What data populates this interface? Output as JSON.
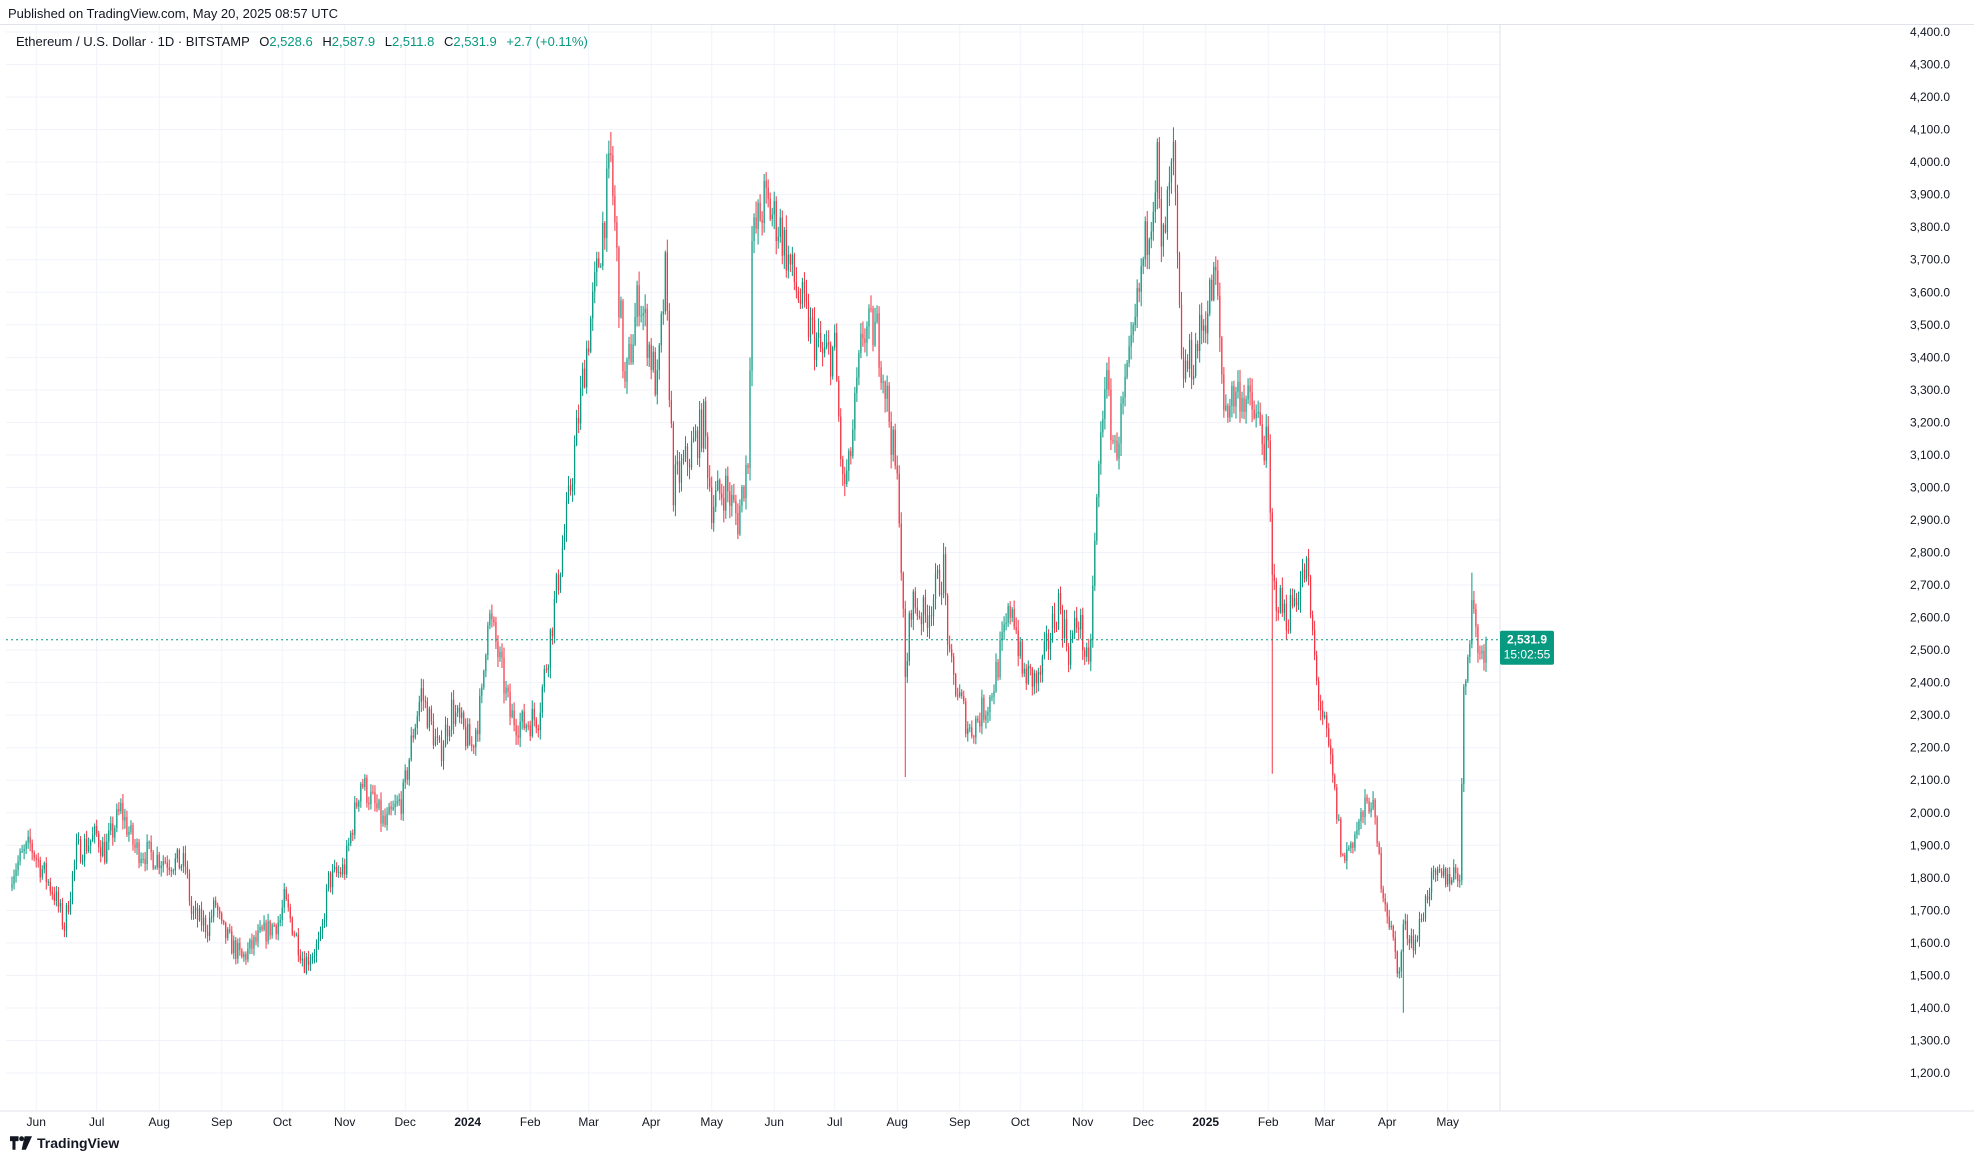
{
  "published": "Published on TradingView.com, May 20, 2025 08:57 UTC",
  "legend": {
    "title": "Ethereum / U.S. Dollar · 1D · BITSTAMP",
    "open_label": "O",
    "open": "2,528.6",
    "high_label": "H",
    "high": "2,587.9",
    "low_label": "L",
    "low": "2,511.8",
    "close_label": "C",
    "close": "2,531.9",
    "change": "+2.7 (+0.11%)"
  },
  "last_price": {
    "value": "2,531.9",
    "countdown": "15:02:55"
  },
  "footer": {
    "brand": "TradingView"
  },
  "colors": {
    "up": "#089981",
    "down": "#f23645",
    "neutral": "#5d606b",
    "grid": "#f0f3fa",
    "last_line": "#089981"
  },
  "chart_data": {
    "type": "candlestick",
    "symbol": "Ethereum / U.S. Dollar",
    "interval": "1D",
    "exchange": "BITSTAMP",
    "ylim": [
      1100,
      4450
    ],
    "yticks": [
      "1,200.0",
      "1,300.0",
      "1,400.0",
      "1,500.0",
      "1,600.0",
      "1,700.0",
      "1,800.0",
      "1,900.0",
      "2,000.0",
      "2,100.0",
      "2,200.0",
      "2,300.0",
      "2,400.0",
      "2,500.0",
      "2,600.0",
      "2,700.0",
      "2,800.0",
      "2,900.0",
      "3,000.0",
      "3,100.0",
      "3,200.0",
      "3,300.0",
      "3,400.0",
      "3,500.0",
      "3,600.0",
      "3,700.0",
      "3,800.0",
      "3,900.0",
      "4,000.0",
      "4,100.0",
      "4,200.0",
      "4,300.0",
      "4,400.0"
    ],
    "x_labels": [
      {
        "text": "Jun",
        "date": "2023-06-01",
        "bold": false
      },
      {
        "text": "Jul",
        "date": "2023-07-01",
        "bold": false
      },
      {
        "text": "Aug",
        "date": "2023-08-01",
        "bold": false
      },
      {
        "text": "Sep",
        "date": "2023-09-01",
        "bold": false
      },
      {
        "text": "Oct",
        "date": "2023-10-01",
        "bold": false
      },
      {
        "text": "Nov",
        "date": "2023-11-01",
        "bold": false
      },
      {
        "text": "Dec",
        "date": "2023-12-01",
        "bold": false
      },
      {
        "text": "2024",
        "date": "2024-01-01",
        "bold": true
      },
      {
        "text": "Feb",
        "date": "2024-02-01",
        "bold": false
      },
      {
        "text": "Mar",
        "date": "2024-03-01",
        "bold": false
      },
      {
        "text": "Apr",
        "date": "2024-04-01",
        "bold": false
      },
      {
        "text": "May",
        "date": "2024-05-01",
        "bold": false
      },
      {
        "text": "Jun",
        "date": "2024-06-01",
        "bold": false
      },
      {
        "text": "Jul",
        "date": "2024-07-01",
        "bold": false
      },
      {
        "text": "Aug",
        "date": "2024-08-01",
        "bold": false
      },
      {
        "text": "Sep",
        "date": "2024-09-01",
        "bold": false
      },
      {
        "text": "Oct",
        "date": "2024-10-01",
        "bold": false
      },
      {
        "text": "Nov",
        "date": "2024-11-01",
        "bold": false
      },
      {
        "text": "Dec",
        "date": "2024-12-01",
        "bold": false
      },
      {
        "text": "2025",
        "date": "2025-01-01",
        "bold": true
      },
      {
        "text": "Feb",
        "date": "2025-02-01",
        "bold": false
      },
      {
        "text": "Mar",
        "date": "2025-03-01",
        "bold": false
      },
      {
        "text": "Apr",
        "date": "2025-04-01",
        "bold": false
      },
      {
        "text": "May",
        "date": "2025-05-01",
        "bold": false
      }
    ],
    "date_range": [
      "2023-05-20",
      "2025-05-20"
    ],
    "last_close": 2531.9,
    "close_path": [
      {
        "date": "2023-05-20",
        "close": 1820
      },
      {
        "date": "2023-05-29",
        "close": 1900
      },
      {
        "date": "2023-06-10",
        "close": 1750
      },
      {
        "date": "2023-06-15",
        "close": 1650
      },
      {
        "date": "2023-06-21",
        "close": 1880
      },
      {
        "date": "2023-07-01",
        "close": 1930
      },
      {
        "date": "2023-07-05",
        "close": 1880
      },
      {
        "date": "2023-07-13",
        "close": 2010
      },
      {
        "date": "2023-07-20",
        "close": 1890
      },
      {
        "date": "2023-08-01",
        "close": 1860
      },
      {
        "date": "2023-08-14",
        "close": 1840
      },
      {
        "date": "2023-08-17",
        "close": 1690
      },
      {
        "date": "2023-08-25",
        "close": 1650
      },
      {
        "date": "2023-08-29",
        "close": 1720
      },
      {
        "date": "2023-09-01",
        "close": 1640
      },
      {
        "date": "2023-09-11",
        "close": 1550
      },
      {
        "date": "2023-09-20",
        "close": 1620
      },
      {
        "date": "2023-09-30",
        "close": 1670
      },
      {
        "date": "2023-10-02",
        "close": 1730
      },
      {
        "date": "2023-10-12",
        "close": 1540
      },
      {
        "date": "2023-10-20",
        "close": 1600
      },
      {
        "date": "2023-10-24",
        "close": 1790
      },
      {
        "date": "2023-11-01",
        "close": 1830
      },
      {
        "date": "2023-11-09",
        "close": 2100
      },
      {
        "date": "2023-11-21",
        "close": 1960
      },
      {
        "date": "2023-11-30",
        "close": 2050
      },
      {
        "date": "2023-12-05",
        "close": 2250
      },
      {
        "date": "2023-12-09",
        "close": 2370
      },
      {
        "date": "2023-12-18",
        "close": 2180
      },
      {
        "date": "2023-12-24",
        "close": 2320
      },
      {
        "date": "2024-01-03",
        "close": 2200
      },
      {
        "date": "2024-01-08",
        "close": 2350
      },
      {
        "date": "2024-01-11",
        "close": 2620
      },
      {
        "date": "2024-01-15",
        "close": 2520
      },
      {
        "date": "2024-01-22",
        "close": 2300
      },
      {
        "date": "2024-01-28",
        "close": 2270
      },
      {
        "date": "2024-02-05",
        "close": 2300
      },
      {
        "date": "2024-02-10",
        "close": 2500
      },
      {
        "date": "2024-02-20",
        "close": 2950
      },
      {
        "date": "2024-02-28",
        "close": 3380
      },
      {
        "date": "2024-03-05",
        "close": 3650
      },
      {
        "date": "2024-03-12",
        "close": 4000
      },
      {
        "date": "2024-03-19",
        "close": 3300
      },
      {
        "date": "2024-03-26",
        "close": 3600
      },
      {
        "date": "2024-04-04",
        "close": 3300
      },
      {
        "date": "2024-04-08",
        "close": 3650
      },
      {
        "date": "2024-04-12",
        "close": 3000
      },
      {
        "date": "2024-04-20",
        "close": 3100
      },
      {
        "date": "2024-04-27",
        "close": 3200
      },
      {
        "date": "2024-05-01",
        "close": 2950
      },
      {
        "date": "2024-05-08",
        "close": 3000
      },
      {
        "date": "2024-05-14",
        "close": 2900
      },
      {
        "date": "2024-05-19",
        "close": 3100
      },
      {
        "date": "2024-05-21",
        "close": 3750
      },
      {
        "date": "2024-05-27",
        "close": 3880
      },
      {
        "date": "2024-06-04",
        "close": 3800
      },
      {
        "date": "2024-06-10",
        "close": 3650
      },
      {
        "date": "2024-06-18",
        "close": 3500
      },
      {
        "date": "2024-06-25",
        "close": 3400
      },
      {
        "date": "2024-07-01",
        "close": 3420
      },
      {
        "date": "2024-07-05",
        "close": 3000
      },
      {
        "date": "2024-07-08",
        "close": 3050
      },
      {
        "date": "2024-07-15",
        "close": 3480
      },
      {
        "date": "2024-07-22",
        "close": 3480
      },
      {
        "date": "2024-07-27",
        "close": 3270
      },
      {
        "date": "2024-08-02",
        "close": 2950
      },
      {
        "date": "2024-08-05",
        "close": 2400
      },
      {
        "date": "2024-08-08",
        "close": 2650
      },
      {
        "date": "2024-08-15",
        "close": 2600
      },
      {
        "date": "2024-08-24",
        "close": 2750
      },
      {
        "date": "2024-08-27",
        "close": 2450
      },
      {
        "date": "2024-09-06",
        "close": 2250
      },
      {
        "date": "2024-09-16",
        "close": 2350
      },
      {
        "date": "2024-09-27",
        "close": 2650
      },
      {
        "date": "2024-10-02",
        "close": 2430
      },
      {
        "date": "2024-10-10",
        "close": 2400
      },
      {
        "date": "2024-10-20",
        "close": 2650
      },
      {
        "date": "2024-10-25",
        "close": 2500
      },
      {
        "date": "2024-10-30",
        "close": 2600
      },
      {
        "date": "2024-11-04",
        "close": 2420
      },
      {
        "date": "2024-11-08",
        "close": 2950
      },
      {
        "date": "2024-11-12",
        "close": 3350
      },
      {
        "date": "2024-11-17",
        "close": 3100
      },
      {
        "date": "2024-11-25",
        "close": 3400
      },
      {
        "date": "2024-12-01",
        "close": 3700
      },
      {
        "date": "2024-12-08",
        "close": 4000
      },
      {
        "date": "2024-12-10",
        "close": 3700
      },
      {
        "date": "2024-12-16",
        "close": 4000
      },
      {
        "date": "2024-12-20",
        "close": 3350
      },
      {
        "date": "2024-12-26",
        "close": 3400
      },
      {
        "date": "2025-01-06",
        "close": 3650
      },
      {
        "date": "2025-01-10",
        "close": 3250
      },
      {
        "date": "2025-01-18",
        "close": 3300
      },
      {
        "date": "2025-01-27",
        "close": 3200
      },
      {
        "date": "2025-02-01",
        "close": 3100
      },
      {
        "date": "2025-02-03",
        "close": 2700
      },
      {
        "date": "2025-02-10",
        "close": 2600
      },
      {
        "date": "2025-02-20",
        "close": 2750
      },
      {
        "date": "2025-02-25",
        "close": 2400
      },
      {
        "date": "2025-03-04",
        "close": 2150
      },
      {
        "date": "2025-03-10",
        "close": 1850
      },
      {
        "date": "2025-03-17",
        "close": 1950
      },
      {
        "date": "2025-03-24",
        "close": 2050
      },
      {
        "date": "2025-03-29",
        "close": 1800
      },
      {
        "date": "2025-04-07",
        "close": 1500
      },
      {
        "date": "2025-04-09",
        "close": 1650
      },
      {
        "date": "2025-04-15",
        "close": 1600
      },
      {
        "date": "2025-04-22",
        "close": 1780
      },
      {
        "date": "2025-04-28",
        "close": 1800
      },
      {
        "date": "2025-05-07",
        "close": 1820
      },
      {
        "date": "2025-05-09",
        "close": 2350
      },
      {
        "date": "2025-05-13",
        "close": 2650
      },
      {
        "date": "2025-05-17",
        "close": 2480
      },
      {
        "date": "2025-05-20",
        "close": 2531.9
      }
    ],
    "wick_extremes": [
      {
        "date": "2023-10-12",
        "low": 1520
      },
      {
        "date": "2024-03-12",
        "high": 4093
      },
      {
        "date": "2024-08-05",
        "low": 2110
      },
      {
        "date": "2024-12-16",
        "high": 4107
      },
      {
        "date": "2025-02-03",
        "low": 2120
      },
      {
        "date": "2025-04-09",
        "low": 1385
      },
      {
        "date": "2025-05-13",
        "high": 2738
      }
    ]
  }
}
